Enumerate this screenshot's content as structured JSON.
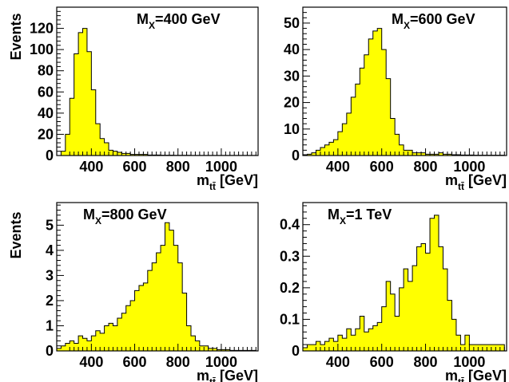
{
  "chart_data": [
    {
      "type": "bar",
      "panel": "top-left",
      "label_main": "M",
      "label_sub": "X",
      "label_rest": "=400 GeV",
      "xlabel_main": "m",
      "xlabel_sub": "tt̄",
      "xlabel_rest": " [GeV]",
      "ylabel": "Events",
      "xlim": [
        240,
        1170
      ],
      "ylim": [
        0,
        140
      ],
      "xticks": [
        400,
        600,
        800,
        1000
      ],
      "yticks": [
        0,
        20,
        40,
        60,
        80,
        100,
        120
      ],
      "bin_width": 20,
      "x_start": 240,
      "values": [
        0,
        4,
        20,
        54,
        96,
        116,
        120,
        98,
        62,
        30,
        16,
        12,
        5,
        4,
        3,
        2,
        2,
        1,
        1,
        1,
        1,
        0.5,
        0.5,
        0.5,
        0.3,
        0.3,
        0.3,
        0.2,
        0.2,
        0.2,
        0.2,
        0.1,
        0.1,
        0.1,
        0.1,
        0.1,
        0.1,
        0.1,
        0.1,
        0.1,
        0.1,
        0.1,
        0.1,
        0.1,
        0.1,
        0.1
      ]
    },
    {
      "type": "bar",
      "panel": "top-right",
      "label_main": "M",
      "label_sub": "X",
      "label_rest": "=600 GeV",
      "xlabel_main": "m",
      "xlabel_sub": "tt̄",
      "xlabel_rest": " [GeV]",
      "ylabel": "",
      "xlim": [
        240,
        1170
      ],
      "ylim": [
        0,
        56
      ],
      "xticks": [
        400,
        600,
        800,
        1000
      ],
      "yticks": [
        0,
        10,
        20,
        30,
        40,
        50
      ],
      "bin_width": 20,
      "x_start": 240,
      "values": [
        0.3,
        0.5,
        1,
        2,
        3,
        4,
        5,
        6,
        9,
        12,
        16,
        22,
        27,
        33,
        38,
        44,
        47,
        48,
        40,
        29,
        14,
        8,
        4,
        2,
        2,
        1,
        1,
        1,
        0.5,
        0.5,
        0.5,
        1,
        0.5,
        0.5,
        0.3,
        0.3,
        0.2,
        0.2,
        0.2,
        0.1,
        0.1,
        0.1,
        0.1,
        0.1,
        0.1,
        0.1
      ]
    },
    {
      "type": "bar",
      "panel": "bottom-left",
      "label_main": "M",
      "label_sub": "X",
      "label_rest": "=800 GeV",
      "xlabel_main": "m",
      "xlabel_sub": "tt̄",
      "xlabel_rest": " [GeV]",
      "ylabel": "Events",
      "xlim": [
        240,
        1170
      ],
      "ylim": [
        0,
        5.9
      ],
      "xticks": [
        400,
        600,
        800,
        1000
      ],
      "yticks": [
        0,
        1,
        2,
        3,
        4,
        5
      ],
      "bin_width": 20,
      "x_start": 240,
      "values": [
        0.1,
        0.2,
        0.3,
        0.4,
        0.3,
        0.6,
        0.5,
        0.4,
        0.6,
        0.8,
        0.7,
        1.0,
        1.1,
        1.0,
        1.3,
        1.5,
        1.8,
        2.0,
        2.4,
        2.6,
        2.7,
        3.2,
        3.5,
        3.9,
        4.2,
        5.1,
        4.8,
        4.2,
        3.5,
        2.3,
        1.0,
        0.6,
        0.4,
        0.2,
        0.2,
        0.1,
        0.1,
        0.05,
        0.05,
        0.05,
        0.02,
        0.02,
        0.02,
        0.02,
        0.02,
        0.02
      ]
    },
    {
      "type": "bar",
      "panel": "bottom-right",
      "label_main": "M",
      "label_sub": "X",
      "label_rest": "=1 TeV",
      "xlabel_main": "m",
      "xlabel_sub": "tt̄",
      "xlabel_rest": " [GeV]",
      "ylabel": "",
      "xlim": [
        240,
        1170
      ],
      "ylim": [
        0,
        0.47
      ],
      "xticks": [
        400,
        600,
        800,
        1000
      ],
      "yticks": [
        0,
        0.1,
        0.2,
        0.3,
        0.4
      ],
      "ytick_labels": [
        "0",
        "0.1",
        "0.2",
        "0.3",
        "0.4"
      ],
      "bin_width": 20,
      "x_start": 240,
      "values": [
        0.01,
        0.02,
        0.02,
        0.03,
        0.02,
        0.03,
        0.04,
        0.03,
        0.05,
        0.04,
        0.07,
        0.05,
        0.07,
        0.11,
        0.06,
        0.07,
        0.08,
        0.09,
        0.14,
        0.22,
        0.18,
        0.11,
        0.2,
        0.26,
        0.22,
        0.27,
        0.33,
        0.34,
        0.31,
        0.42,
        0.43,
        0.33,
        0.26,
        0.16,
        0.1,
        0.05,
        0.02,
        0.05,
        0.02,
        0.02,
        0.02,
        0.02,
        0.02,
        0.02,
        0.02,
        0.02
      ]
    }
  ]
}
